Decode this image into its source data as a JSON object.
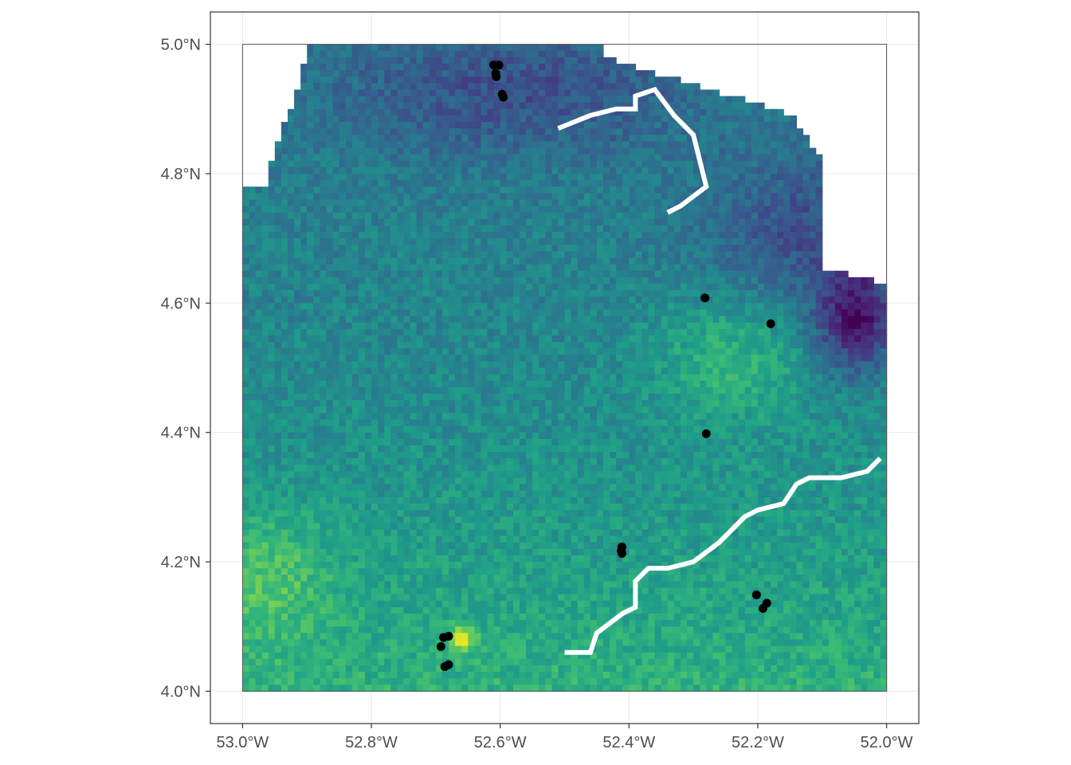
{
  "map": {
    "x_axis": {
      "range": [
        -53.05,
        -51.95
      ],
      "ticks": [
        {
          "value": -53.0,
          "label": "53.0°W"
        },
        {
          "value": -52.8,
          "label": "52.8°W"
        },
        {
          "value": -52.6,
          "label": "52.6°W"
        },
        {
          "value": -52.4,
          "label": "52.4°W"
        },
        {
          "value": -52.2,
          "label": "52.2°W"
        },
        {
          "value": -52.0,
          "label": "52.0°W"
        }
      ]
    },
    "y_axis": {
      "range": [
        3.95,
        5.05
      ],
      "ticks": [
        {
          "value": 4.0,
          "label": "4.0°N"
        },
        {
          "value": 4.2,
          "label": "4.2°N"
        },
        {
          "value": 4.4,
          "label": "4.4°N"
        },
        {
          "value": 4.6,
          "label": "4.6°N"
        },
        {
          "value": 4.8,
          "label": "4.8°N"
        },
        {
          "value": 5.0,
          "label": "5.0°N"
        }
      ]
    },
    "grid": true,
    "colors": {
      "panel_border": "#333333",
      "grid": "#ebebeb",
      "points": "#000000",
      "colormap": "viridis"
    },
    "raster_extent": {
      "lon": [
        -53.0,
        -52.0
      ],
      "lat": [
        4.0,
        5.0
      ]
    },
    "points": [
      {
        "lon": -52.61,
        "lat": 4.968
      },
      {
        "lon": -52.602,
        "lat": 4.968
      },
      {
        "lon": -52.607,
        "lat": 4.955
      },
      {
        "lon": -52.606,
        "lat": 4.95
      },
      {
        "lon": -52.597,
        "lat": 4.923
      },
      {
        "lon": -52.595,
        "lat": 4.918
      },
      {
        "lon": -52.282,
        "lat": 4.608
      },
      {
        "lon": -52.18,
        "lat": 4.568
      },
      {
        "lon": -52.28,
        "lat": 4.398
      },
      {
        "lon": -52.411,
        "lat": 4.223
      },
      {
        "lon": -52.412,
        "lat": 4.217
      },
      {
        "lon": -52.411,
        "lat": 4.213
      },
      {
        "lon": -52.202,
        "lat": 4.149
      },
      {
        "lon": -52.186,
        "lat": 4.136
      },
      {
        "lon": -52.192,
        "lat": 4.128
      },
      {
        "lon": -52.68,
        "lat": 4.085
      },
      {
        "lon": -52.688,
        "lat": 4.083
      },
      {
        "lon": -52.692,
        "lat": 4.069
      },
      {
        "lon": -52.68,
        "lat": 4.041
      },
      {
        "lon": -52.686,
        "lat": 4.038
      }
    ]
  }
}
